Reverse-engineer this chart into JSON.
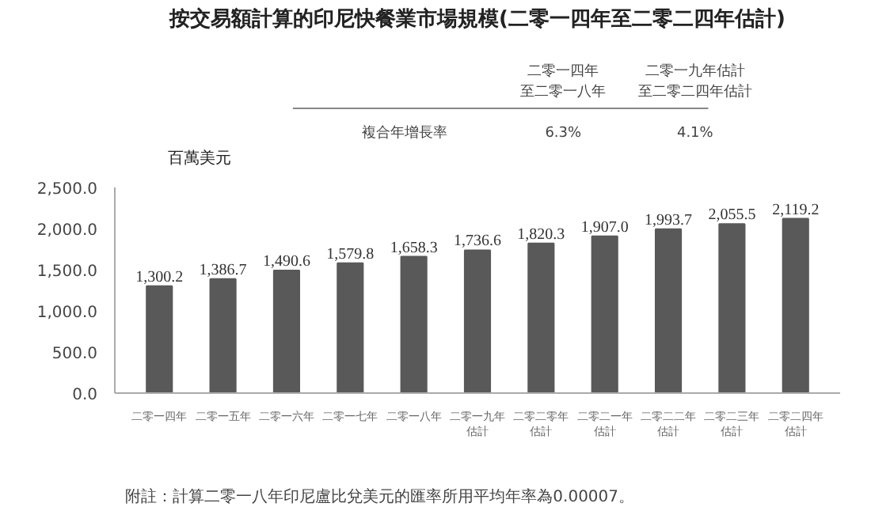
{
  "chart_data": {
    "type": "bar",
    "title": "按交易額計算的印尼快餐業市場規模(二零一四年至二零二四年估計)",
    "ylabel": "百萬美元",
    "categories": [
      "二零一四年",
      "二零一五年",
      "二零一六年",
      "二零一七年",
      "二零一八年",
      "二零一九年估計",
      "二零二零年估計",
      "二零二一年估計",
      "二零二二年估計",
      "二零二三年估計",
      "二零二四年估計"
    ],
    "values": [
      1300.2,
      1386.7,
      1490.6,
      1579.8,
      1658.3,
      1736.6,
      1820.3,
      1907.0,
      1993.7,
      2055.5,
      2119.2
    ],
    "value_labels": [
      "1,300.2",
      "1,386.7",
      "1,490.6",
      "1,579.8",
      "1,658.3",
      "1,736.6",
      "1,820.3",
      "1,907.0",
      "1,993.7",
      "2,055.5",
      "2,119.2"
    ],
    "color": "#595959",
    "ylim": [
      0,
      2500
    ],
    "yticks": [
      {
        "value": 0,
        "label": "0.0"
      },
      {
        "value": 500,
        "label": "500.0"
      },
      {
        "value": 1000,
        "label": "1,000.0"
      },
      {
        "value": 1500,
        "label": "1,500.0"
      },
      {
        "value": 2000,
        "label": "2,000.0"
      },
      {
        "value": 2500,
        "label": "2,500.0"
      }
    ],
    "grid": false,
    "annotations": [
      "二零一四年",
      "至二零一八年",
      "二零一九年估計",
      "至二零二四年估計",
      "複合年增長率",
      "6.3%",
      "4.1%",
      "附註：計算二零一八年印尼盧比兌美元的匯率所用平均年率為0.00007。"
    ]
  }
}
